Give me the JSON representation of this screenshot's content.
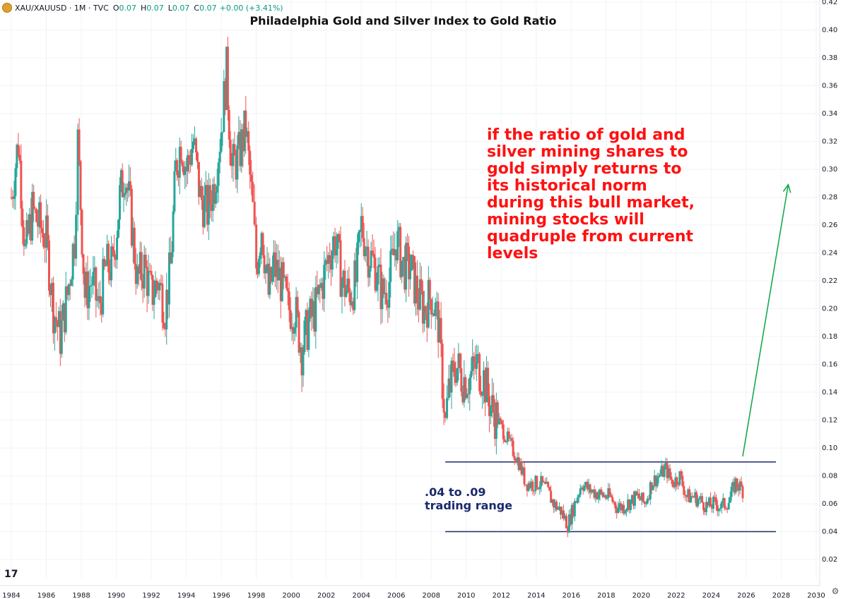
{
  "header": {
    "symbol": "XAU/XAUUSD · 1M · TVC",
    "ohlc": [
      {
        "key": "O",
        "value": "0.07"
      },
      {
        "key": "H",
        "value": "0.07"
      },
      {
        "key": "L",
        "value": "0.07"
      },
      {
        "key": "C",
        "value": "0.07"
      }
    ],
    "change": "+0.00 (+3.41%)"
  },
  "tv_logo": "17",
  "chart_data": {
    "type": "candlestick",
    "title": "Philadelphia Gold and Silver Index to Gold Ratio",
    "xlabel": "",
    "ylabel": "",
    "x_ticks": [
      "1984",
      "1986",
      "1988",
      "1990",
      "1992",
      "1994",
      "1996",
      "1998",
      "2000",
      "2002",
      "2004",
      "2006",
      "2008",
      "2010",
      "2012",
      "2014",
      "2016",
      "2018",
      "2020",
      "2022",
      "2024",
      "2026",
      "2028",
      "2030"
    ],
    "y_ticks": [
      "0.02",
      "0.04",
      "0.06",
      "0.08",
      "0.10",
      "0.12",
      "0.14",
      "0.16",
      "0.18",
      "0.20",
      "0.22",
      "0.24",
      "0.26",
      "0.28",
      "0.30",
      "0.32",
      "0.34",
      "0.36",
      "0.38",
      "0.40",
      "0.42"
    ],
    "xlim": [
      1984.0,
      2030.0
    ],
    "ylim": [
      0.02,
      0.42
    ],
    "grid": true,
    "up_color": "#26a69a",
    "down_color": "#ef5350",
    "series": [
      {
        "name": "XAU/XAUUSD",
        "points": [
          [
            1984.0,
            0.28
          ],
          [
            1984.4,
            0.32
          ],
          [
            1984.8,
            0.24
          ],
          [
            1985.2,
            0.27
          ],
          [
            1985.6,
            0.26
          ],
          [
            1986.0,
            0.25
          ],
          [
            1986.4,
            0.2
          ],
          [
            1986.8,
            0.18
          ],
          [
            1987.2,
            0.21
          ],
          [
            1987.6,
            0.25
          ],
          [
            1987.8,
            0.32
          ],
          [
            1988.2,
            0.21
          ],
          [
            1988.6,
            0.22
          ],
          [
            1989.0,
            0.2
          ],
          [
            1989.4,
            0.23
          ],
          [
            1989.8,
            0.23
          ],
          [
            1990.2,
            0.28
          ],
          [
            1990.5,
            0.3
          ],
          [
            1990.8,
            0.27
          ],
          [
            1991.2,
            0.22
          ],
          [
            1991.6,
            0.23
          ],
          [
            1992.0,
            0.21
          ],
          [
            1992.4,
            0.22
          ],
          [
            1992.8,
            0.2
          ],
          [
            1993.1,
            0.23
          ],
          [
            1993.4,
            0.3
          ],
          [
            1993.7,
            0.32
          ],
          [
            1994.0,
            0.3
          ],
          [
            1994.4,
            0.32
          ],
          [
            1994.8,
            0.28
          ],
          [
            1995.2,
            0.27
          ],
          [
            1995.6,
            0.29
          ],
          [
            1996.0,
            0.33
          ],
          [
            1996.3,
            0.37
          ],
          [
            1996.6,
            0.3
          ],
          [
            1997.0,
            0.31
          ],
          [
            1997.4,
            0.33
          ],
          [
            1997.8,
            0.27
          ],
          [
            1998.0,
            0.23
          ],
          [
            1998.3,
            0.26
          ],
          [
            1998.7,
            0.21
          ],
          [
            1999.0,
            0.23
          ],
          [
            1999.4,
            0.22
          ],
          [
            1999.8,
            0.2
          ],
          [
            2000.2,
            0.2
          ],
          [
            2000.6,
            0.17
          ],
          [
            2001.0,
            0.19
          ],
          [
            2001.4,
            0.2
          ],
          [
            2001.8,
            0.22
          ],
          [
            2002.2,
            0.24
          ],
          [
            2002.5,
            0.25
          ],
          [
            2002.9,
            0.22
          ],
          [
            2003.3,
            0.21
          ],
          [
            2003.7,
            0.22
          ],
          [
            2004.0,
            0.26
          ],
          [
            2004.4,
            0.24
          ],
          [
            2004.8,
            0.23
          ],
          [
            2005.2,
            0.21
          ],
          [
            2005.6,
            0.22
          ],
          [
            2006.0,
            0.25
          ],
          [
            2006.4,
            0.23
          ],
          [
            2006.8,
            0.23
          ],
          [
            2007.2,
            0.21
          ],
          [
            2007.6,
            0.2
          ],
          [
            2008.0,
            0.21
          ],
          [
            2008.4,
            0.19
          ],
          [
            2008.8,
            0.12
          ],
          [
            2009.0,
            0.14
          ],
          [
            2009.4,
            0.16
          ],
          [
            2009.8,
            0.15
          ],
          [
            2010.2,
            0.15
          ],
          [
            2010.6,
            0.16
          ],
          [
            2011.0,
            0.15
          ],
          [
            2011.4,
            0.13
          ],
          [
            2011.8,
            0.12
          ],
          [
            2012.2,
            0.11
          ],
          [
            2012.6,
            0.1
          ],
          [
            2013.0,
            0.09
          ],
          [
            2013.4,
            0.075
          ],
          [
            2013.8,
            0.074
          ],
          [
            2014.2,
            0.075
          ],
          [
            2014.6,
            0.07
          ],
          [
            2015.0,
            0.06
          ],
          [
            2015.4,
            0.055
          ],
          [
            2015.8,
            0.045
          ],
          [
            2016.2,
            0.06
          ],
          [
            2016.6,
            0.075
          ],
          [
            2017.0,
            0.07
          ],
          [
            2017.4,
            0.068
          ],
          [
            2017.8,
            0.066
          ],
          [
            2018.2,
            0.065
          ],
          [
            2018.6,
            0.058
          ],
          [
            2019.0,
            0.058
          ],
          [
            2019.4,
            0.062
          ],
          [
            2019.8,
            0.065
          ],
          [
            2020.2,
            0.06
          ],
          [
            2020.6,
            0.075
          ],
          [
            2021.0,
            0.08
          ],
          [
            2021.4,
            0.085
          ],
          [
            2021.8,
            0.075
          ],
          [
            2022.2,
            0.08
          ],
          [
            2022.6,
            0.065
          ],
          [
            2023.0,
            0.065
          ],
          [
            2023.4,
            0.062
          ],
          [
            2023.8,
            0.058
          ],
          [
            2024.2,
            0.06
          ],
          [
            2024.6,
            0.058
          ],
          [
            2025.0,
            0.062
          ],
          [
            2025.4,
            0.075
          ],
          [
            2025.8,
            0.07
          ]
        ]
      }
    ],
    "range_lines": [
      {
        "y": 0.09,
        "x_start": 2008.8,
        "x_end": 2027.7
      },
      {
        "y": 0.04,
        "x_start": 2008.8,
        "x_end": 2027.7
      }
    ],
    "arrow": {
      "from": [
        2025.8,
        0.094
      ],
      "to": [
        2028.4,
        0.289
      ],
      "color": "#1aa84c"
    },
    "annotation": "if the ratio of gold and silver mining shares to gold simply returns to its historical norm during this bull market, mining stocks will quadruple from current levels",
    "range_label_line1": ".04 to .09",
    "range_label_line2": "trading range"
  }
}
